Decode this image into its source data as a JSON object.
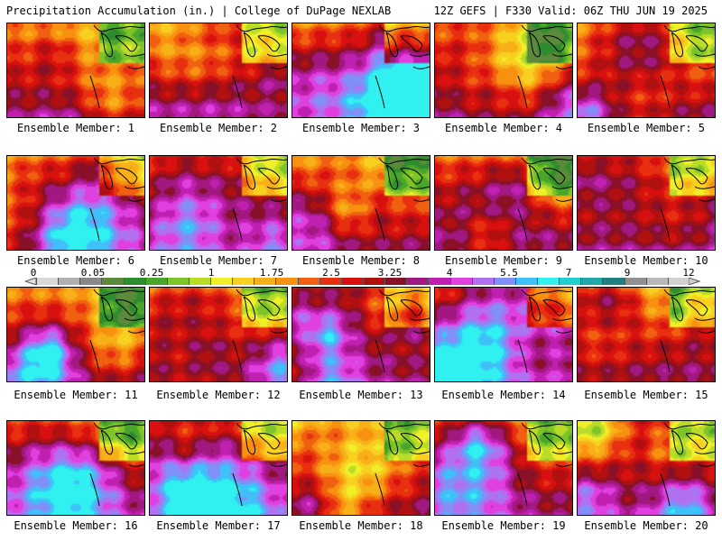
{
  "header": {
    "title_left": "Precipitation Accumulation (in.) | College of DuPage NEXLAB",
    "title_right": "12Z GEFS | F330 Valid: 06Z THU JUN 19 2025"
  },
  "panel_label_prefix": "Ensemble Member: ",
  "members": [
    1,
    2,
    3,
    4,
    5,
    6,
    7,
    8,
    9,
    10,
    11,
    12,
    13,
    14,
    15,
    16,
    17,
    18,
    19,
    20
  ],
  "colorbar": {
    "tick_labels": [
      "0",
      "0.05",
      "0.25",
      "1",
      "1.75",
      "2.5",
      "3.25",
      "4",
      "5.5",
      "7",
      "9",
      "12"
    ],
    "colors": [
      "#d8d8d8",
      "#b0b0b0",
      "#888888",
      "#5a8a3a",
      "#2e8b2e",
      "#4aa62a",
      "#7cc428",
      "#b8dc28",
      "#f0f028",
      "#f8d020",
      "#f8b018",
      "#f89010",
      "#f06010",
      "#e83010",
      "#d81010",
      "#b01010",
      "#881028",
      "#a01880",
      "#c020b0",
      "#e040e0",
      "#b070f0",
      "#8090f8",
      "#40c0f8",
      "#30f0f0",
      "#20d0d0",
      "#20a8a8",
      "#208080",
      "#909090",
      "#b8b8b8",
      "#d0d0d0"
    ]
  }
}
